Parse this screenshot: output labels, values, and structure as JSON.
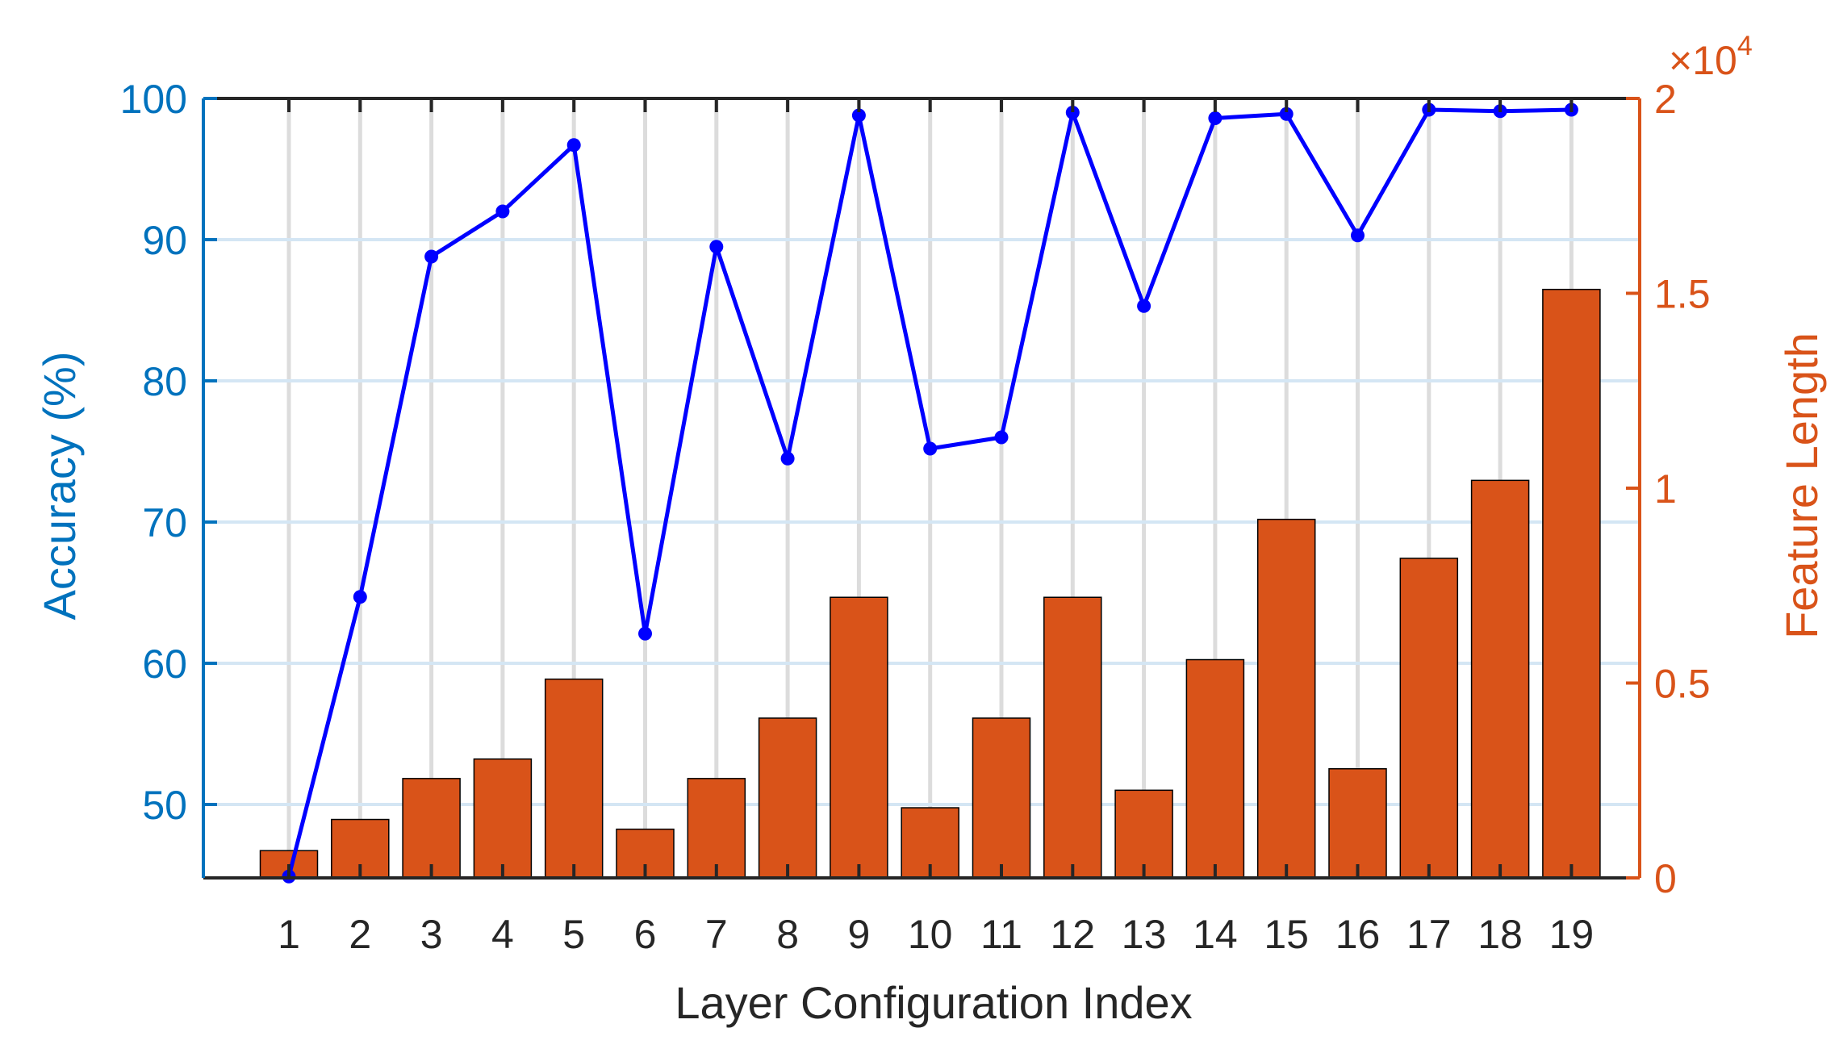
{
  "chart_data": {
    "type": "bar+line",
    "title": "",
    "xlabel": "Layer Configuration Index",
    "ylabel_left": "Accuracy (%)",
    "ylabel_right": "Feature Length",
    "right_axis_exponent": "4",
    "right_axis_multiplier": "×10",
    "categories": [
      "1",
      "2",
      "3",
      "4",
      "5",
      "6",
      "7",
      "8",
      "9",
      "10",
      "11",
      "12",
      "13",
      "14",
      "15",
      "16",
      "17",
      "18",
      "19"
    ],
    "left_axis": {
      "ylim": [
        44.8,
        100
      ],
      "ticks": [
        "50",
        "60",
        "70",
        "80",
        "90",
        "100"
      ],
      "tick_values": [
        50,
        60,
        70,
        80,
        90,
        100
      ]
    },
    "right_axis": {
      "ylim": [
        0,
        20000
      ],
      "ticks": [
        "0",
        "0.5",
        "1",
        "1.5",
        "2"
      ],
      "tick_values": [
        0,
        5000,
        10000,
        15000,
        20000
      ]
    },
    "grid": true,
    "series": [
      {
        "name": "Accuracy",
        "type": "line",
        "axis": "left",
        "color": "#0000FF",
        "values": [
          44.9,
          64.7,
          88.8,
          92.0,
          96.7,
          62.1,
          89.5,
          74.5,
          98.8,
          75.2,
          76.0,
          99.0,
          85.3,
          98.6,
          98.9,
          90.3,
          99.2,
          99.1,
          99.2
        ]
      },
      {
        "name": "Feature Length",
        "type": "bar",
        "axis": "right",
        "color": "#D95319",
        "values": [
          700,
          1500,
          2550,
          3050,
          5100,
          1250,
          2550,
          4100,
          7200,
          1800,
          4100,
          7200,
          2250,
          5600,
          9200,
          2800,
          8200,
          10200,
          15100
        ]
      }
    ]
  }
}
